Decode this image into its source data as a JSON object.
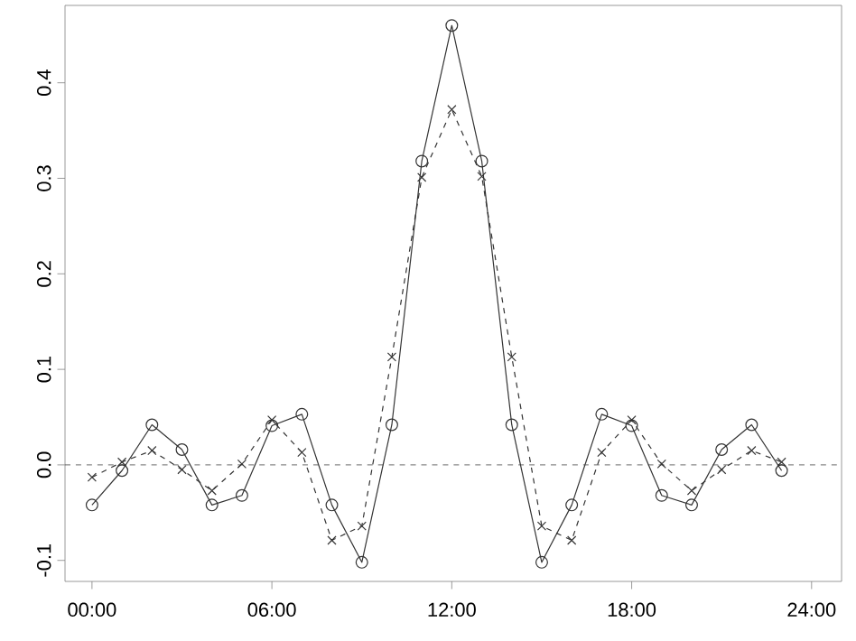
{
  "chart_data": {
    "type": "line",
    "x": [
      0,
      1,
      2,
      3,
      4,
      5,
      6,
      7,
      8,
      9,
      10,
      11,
      12,
      13,
      14,
      15,
      16,
      17,
      18,
      19,
      20,
      21,
      22,
      23
    ],
    "series": [
      {
        "color": "#333333",
        "marker": "circle",
        "line_style": "solid",
        "values": [
          -0.042,
          -0.006,
          0.042,
          0.016,
          -0.042,
          -0.032,
          0.041,
          0.053,
          -0.042,
          -0.102,
          0.042,
          0.318,
          0.46,
          0.318,
          0.042,
          -0.102,
          -0.042,
          0.053,
          0.041,
          -0.032,
          -0.042,
          0.016,
          0.042,
          -0.006
        ]
      },
      {
        "color": "#333333",
        "marker": "cross",
        "line_style": "dashed",
        "values": [
          -0.013,
          0.003,
          0.015,
          -0.005,
          -0.027,
          0.001,
          0.047,
          0.013,
          -0.079,
          -0.064,
          0.113,
          0.301,
          0.372,
          0.302,
          0.113,
          -0.064,
          -0.079,
          0.013,
          0.047,
          0.001,
          -0.027,
          -0.005,
          0.015,
          0.003
        ]
      }
    ],
    "xlim": [
      -0.9,
      25
    ],
    "xticks": [
      {
        "value": 0,
        "label": "00:00"
      },
      {
        "value": 6,
        "label": "06:00"
      },
      {
        "value": 12,
        "label": "12:00"
      },
      {
        "value": 18,
        "label": "18:00"
      },
      {
        "value": 24,
        "label": "24:00"
      }
    ],
    "ylim": [
      -0.122,
      0.481
    ],
    "yticks": [
      {
        "value": -0.1,
        "label": "-0.1"
      },
      {
        "value": 0,
        "label": "0.0"
      },
      {
        "value": 0.1,
        "label": "0.1"
      },
      {
        "value": 0.2,
        "label": "0.2"
      },
      {
        "value": 0.3,
        "label": "0.3"
      },
      {
        "value": 0.4,
        "label": "0.4"
      }
    ],
    "ref_lines": [
      {
        "axis": "y",
        "value": 0,
        "color": "#444444",
        "line_style": "dashed"
      }
    ]
  }
}
